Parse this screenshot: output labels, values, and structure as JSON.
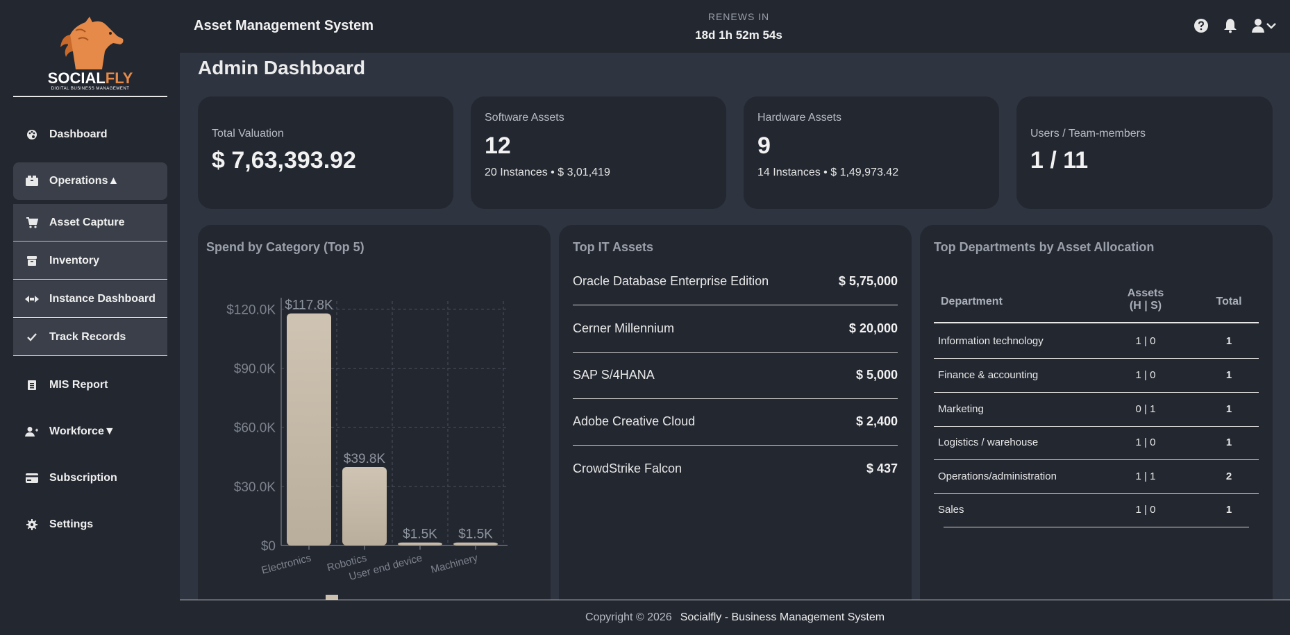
{
  "brand": {
    "name_part1": "SOCIAL",
    "name_part2": "FLY",
    "tagline": "DIGITAL BUSINESS MANAGEMENT"
  },
  "sidebar": {
    "items": [
      {
        "label": "Dashboard",
        "icon": "palette-icon"
      },
      {
        "label": "Operations▲",
        "icon": "boxes-icon"
      },
      {
        "label": "Asset Capture",
        "icon": "cart-icon"
      },
      {
        "label": "Inventory",
        "icon": "archive-icon"
      },
      {
        "label": "Instance Dashboard",
        "icon": "arrows-icon"
      },
      {
        "label": "Track Records",
        "icon": "check-icon"
      },
      {
        "label": "MIS Report",
        "icon": "receipt-icon"
      },
      {
        "label": "Workforce▼",
        "icon": "user-plus-icon"
      },
      {
        "label": "Subscription",
        "icon": "credit-card-icon"
      },
      {
        "label": "Settings",
        "icon": "gear-icon"
      }
    ]
  },
  "header": {
    "title": "Asset Management System",
    "renew_label": "RENEWS IN",
    "renew_time": "18d 1h 52m 54s"
  },
  "page": {
    "title": "Admin Dashboard"
  },
  "stats": {
    "valuation": {
      "label": "Total Valuation",
      "value": "$ 7,63,393.92"
    },
    "software": {
      "label": "Software Assets",
      "value": "12",
      "sub": "20 Instances • $ 3,01,419"
    },
    "hardware": {
      "label": "Hardware Assets",
      "value": "9",
      "sub": "14 Instances • $ 1,49,973.42"
    },
    "users": {
      "label": "Users / Team-members",
      "value": "1 / 11"
    }
  },
  "spend_panel": {
    "title": "Spend by Category (Top 5)"
  },
  "chart_data": {
    "type": "bar",
    "title": "Spend by Category (Top 5)",
    "categories": [
      "Electronics",
      "Robotics",
      "User end device",
      "Machinery"
    ],
    "values": [
      117800,
      39800,
      1500,
      1500
    ],
    "value_labels": [
      "$117.8K",
      "$39.8K",
      "$1.5K",
      "$1.5K"
    ],
    "y_ticks": [
      0,
      30000,
      60000,
      90000,
      120000
    ],
    "y_tick_labels": [
      "$0",
      "$30.0K",
      "$60.0K",
      "$90.0K",
      "$120.0K"
    ],
    "ylim": [
      0,
      124000
    ],
    "grid": true,
    "legend": "bottom",
    "bar_color": "#cbbfae"
  },
  "top_assets": {
    "title": "Top IT Assets",
    "rows": [
      {
        "name": "Oracle Database Enterprise Edition",
        "value": "$ 5,75,000"
      },
      {
        "name": "Cerner Millennium",
        "value": "$ 20,000"
      },
      {
        "name": "SAP S/4HANA",
        "value": "$ 5,000"
      },
      {
        "name": "Adobe Creative Cloud",
        "value": "$ 2,400"
      },
      {
        "name": "CrowdStrike Falcon",
        "value": "$ 437"
      }
    ]
  },
  "departments": {
    "title": "Top Departments by Asset Allocation",
    "headers": {
      "dept": "Department",
      "assets_line1": "Assets",
      "assets_line2": "(H | S)",
      "total": "Total"
    },
    "rows": [
      {
        "name": "Information technology",
        "assets": "1 | 0",
        "total": "1"
      },
      {
        "name": "Finance & accounting",
        "assets": "1 | 0",
        "total": "1"
      },
      {
        "name": "Marketing",
        "assets": "0 | 1",
        "total": "1"
      },
      {
        "name": "Logistics / warehouse",
        "assets": "1 | 0",
        "total": "1"
      },
      {
        "name": "Operations/administration",
        "assets": "1 | 1",
        "total": "2"
      },
      {
        "name": "Sales",
        "assets": "1 | 0",
        "total": "1"
      }
    ]
  },
  "footer": {
    "copyright": "Copyright © 2026",
    "brand": "Socialfly - Business Management System"
  }
}
